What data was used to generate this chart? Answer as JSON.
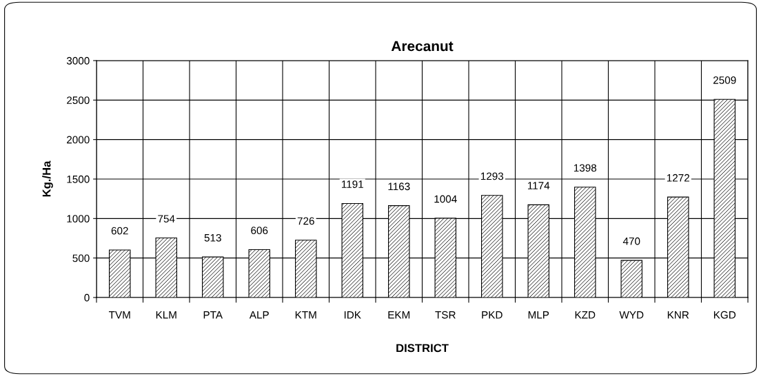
{
  "chart_data": {
    "type": "bar",
    "title": "Arecanut",
    "xlabel": "DISTRICT",
    "ylabel": "Kg./Ha",
    "categories": [
      "TVM",
      "KLM",
      "PTA",
      "ALP",
      "KTM",
      "IDK",
      "EKM",
      "TSR",
      "PKD",
      "MLP",
      "KZD",
      "WYD",
      "KNR",
      "KGD"
    ],
    "values": [
      602,
      754,
      513,
      606,
      726,
      1191,
      1163,
      1004,
      1293,
      1174,
      1398,
      470,
      1272,
      2509
    ],
    "color": "#000000",
    "ylim": [
      0,
      3000
    ],
    "yticks": [
      0,
      500,
      1000,
      1500,
      2000,
      2500,
      3000
    ],
    "grid": true,
    "data_labels": true,
    "legend": false
  }
}
